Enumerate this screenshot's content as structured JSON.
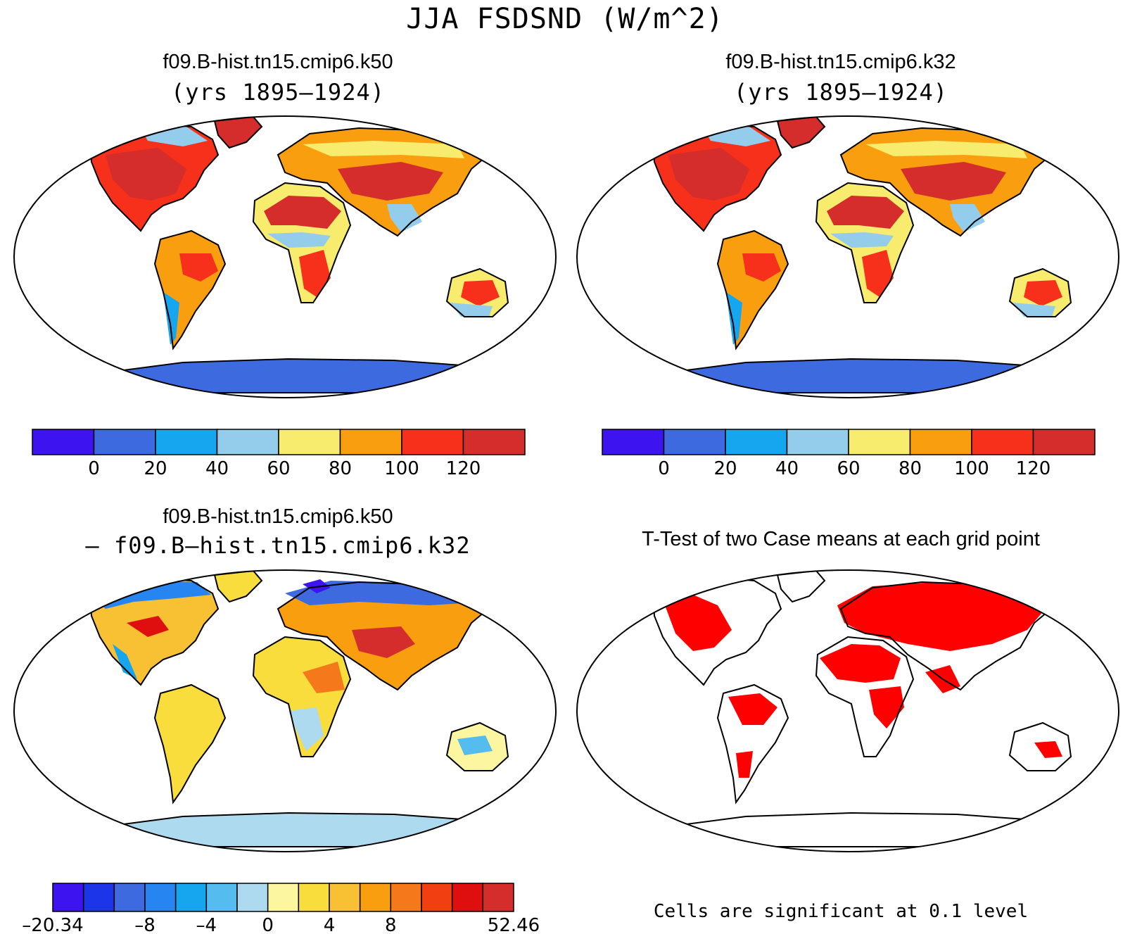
{
  "main_title": "JJA FSDSND (W/m^2)",
  "panels": [
    {
      "title": "f09.B-hist.tn15.cmip6.k50",
      "subtitle": "(yrs 1895–1924)"
    },
    {
      "title": "f09.B-hist.tn15.cmip6.k32",
      "subtitle": "(yrs 1895–1924)"
    },
    {
      "title": "f09.B-hist.tn15.cmip6.k50",
      "subtitle": "– f09.B–hist.tn15.cmip6.k32"
    },
    {
      "title": "T-Test of two Case means at each grid point",
      "subtitle": ""
    }
  ],
  "colorbar_abs": {
    "colors": [
      "#3d14f0",
      "#3e6ae0",
      "#16a6ef",
      "#94cdec",
      "#f8ec6e",
      "#f99f0f",
      "#f6301a",
      "#d42d2b"
    ],
    "labels": [
      "0",
      "20",
      "40",
      "60",
      "80",
      "100",
      "120"
    ]
  },
  "colorbar_diff": {
    "colors": [
      "#3d14f0",
      "#1c35e8",
      "#3e6ae0",
      "#2685f0",
      "#16a6ef",
      "#54bcef",
      "#aedaf0",
      "#fdf6a0",
      "#f8dd3c",
      "#f8c033",
      "#f99f0f",
      "#f5781a",
      "#f23f12",
      "#e00f0f",
      "#d42d2b"
    ],
    "labels": [
      "–20.34",
      "–8",
      "–4",
      "0",
      "4",
      "8",
      "52.46"
    ]
  },
  "significance_note": "Cells are significant at 0.1 level",
  "significance_color": "#ff0000"
}
